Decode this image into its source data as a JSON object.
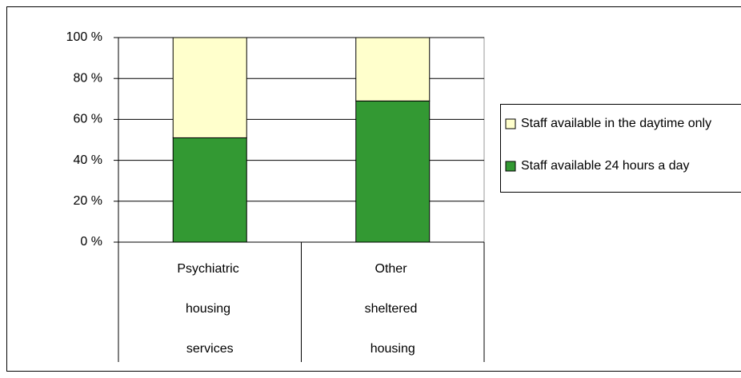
{
  "chart_data": {
    "type": "stacked_bar",
    "categories": [
      "Psychiatric housing services",
      "Other sheltered housing"
    ],
    "series": [
      {
        "name": "Staff available 24 hours a day",
        "color": "#339933",
        "values": [
          51,
          69
        ]
      },
      {
        "name": "Staff available in the daytime only",
        "color": "#ffffcc",
        "values": [
          49,
          31
        ]
      }
    ],
    "ylim": [
      0,
      100
    ],
    "yticks": [
      {
        "value": 0,
        "label": "0 %"
      },
      {
        "value": 20,
        "label": "20 %"
      },
      {
        "value": 40,
        "label": "40 %"
      },
      {
        "value": 60,
        "label": "60 %"
      },
      {
        "value": 80,
        "label": "80 %"
      },
      {
        "value": 100,
        "label": "100 %"
      }
    ],
    "grid": true,
    "legend": "right"
  }
}
